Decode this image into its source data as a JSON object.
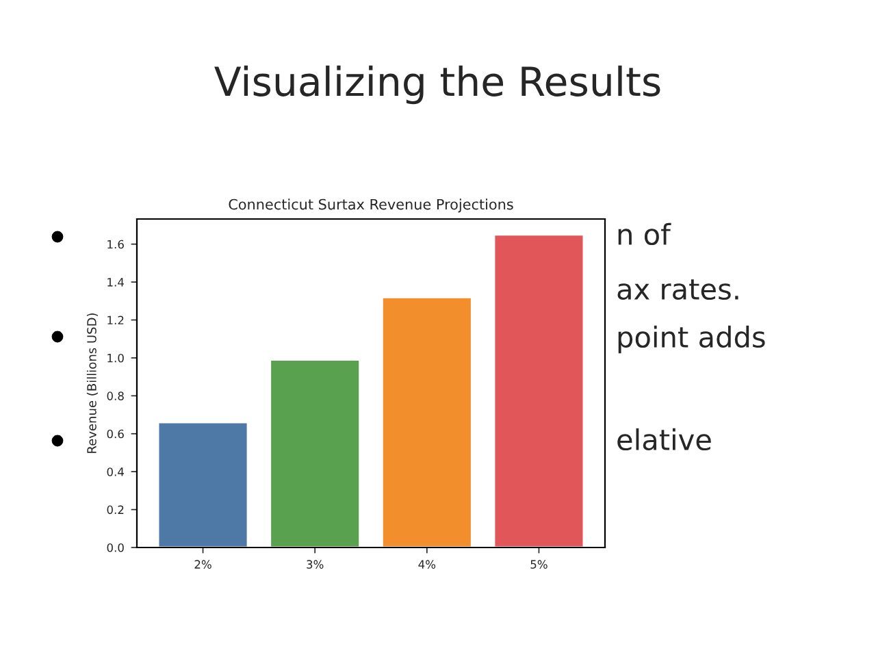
{
  "chart_data": {
    "type": "bar",
    "title": "Visualizing the Results",
    "subtitle": "Connecticut Surtax Revenue Projections",
    "ylabel": "Revenue (Billions USD)",
    "categories": [
      "2%",
      "3%",
      "4%",
      "5%"
    ],
    "values": [
      0.66,
      0.99,
      1.32,
      1.65
    ],
    "colors": [
      "#4e79a7",
      "#59a14f",
      "#f28e2b",
      "#e15759"
    ],
    "ylim": [
      0,
      1.7325
    ],
    "yticks": [
      {
        "value": 0,
        "label": "0.0"
      },
      {
        "value": 0.2,
        "label": "0.2"
      },
      {
        "value": 0.4,
        "label": "0.4"
      },
      {
        "value": 0.6,
        "label": "0.6"
      },
      {
        "value": 0.8,
        "label": "0.8"
      },
      {
        "value": 1.0,
        "label": "1.0"
      },
      {
        "value": 1.2,
        "label": "1.2"
      },
      {
        "value": 1.4,
        "label": "1.4"
      },
      {
        "value": 1.6,
        "label": "1.6"
      }
    ],
    "grid": false,
    "annotations": [
      "n of",
      "ax rates.",
      "point adds",
      "elative"
    ]
  }
}
